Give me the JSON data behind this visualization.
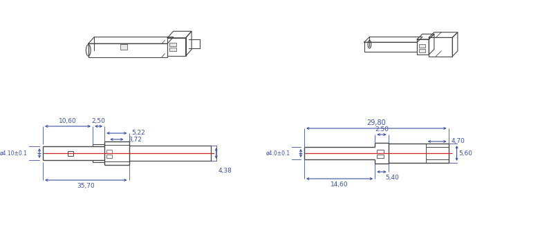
{
  "bg_color": "#ffffff",
  "blue": "#3a50a0",
  "red": "#cc2222",
  "dark": "#444444",
  "fig_width": 7.94,
  "fig_height": 3.42,
  "left": {
    "dim_10_60": "10,60",
    "dim_2_50": "2,50",
    "dim_5_22": "5,22",
    "dim_3_72": "3,72",
    "dim_4_38": "4,38",
    "dim_35_70": "35,70",
    "dim_dia": "ø4.10±0.1"
  },
  "right": {
    "dim_29_80": "29,80",
    "dim_2_50": "2.50",
    "dim_4_70": "4,70",
    "dim_5_60": "5,60",
    "dim_5_40": "5,40",
    "dim_14_60": "14,60",
    "dim_dia": "ø4.0±0.1"
  }
}
